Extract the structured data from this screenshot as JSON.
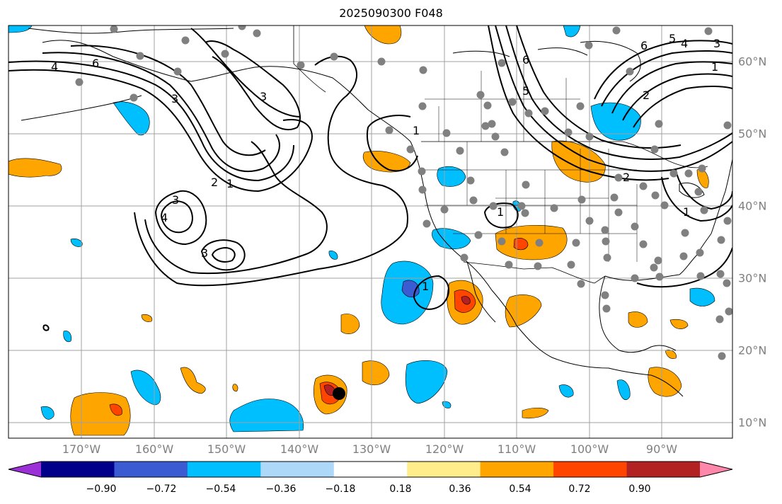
{
  "title": "2025090300 F048",
  "lon_labels": [
    "170°W",
    "160°W",
    "150°W",
    "140°W",
    "130°W",
    "120°W",
    "110°W",
    "100°W",
    "90°W"
  ],
  "lat_labels": [
    "60°N",
    "50°N",
    "40°N",
    "30°N",
    "20°N",
    "10°N"
  ],
  "contour_labels": [
    "4",
    "6",
    "3",
    "3",
    "2",
    "1",
    "3",
    "4",
    "3",
    "1",
    "1",
    "6",
    "5",
    "6",
    "5",
    "4",
    "3",
    "2",
    "2",
    "1",
    "1",
    "1"
  ],
  "colorbar": {
    "ticks": [
      "−0.90",
      "−0.72",
      "−0.54",
      "−0.36",
      "−0.18",
      "0.18",
      "0.36",
      "0.54",
      "0.72",
      "0.90"
    ],
    "colors": [
      "#9b30d9",
      "#00008b",
      "#3a5bd1",
      "#00bfff",
      "#add8f7",
      "#ffffff",
      "#ffec8b",
      "#ffa500",
      "#ff4500",
      "#b22222",
      "#ff88aa"
    ]
  },
  "colors": {
    "land_outline": "#000000",
    "grid": "#a0a0a0",
    "station": "#808080",
    "cyclone_marker": "#000000"
  }
}
